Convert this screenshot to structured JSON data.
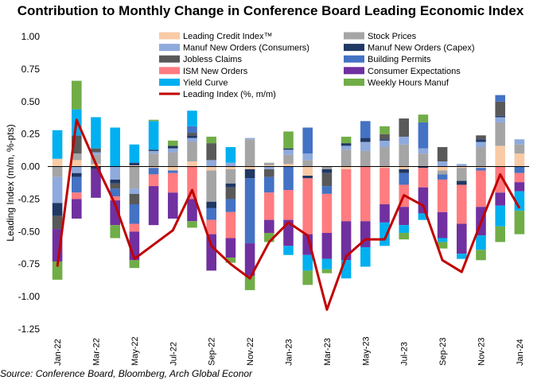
{
  "chart_data": {
    "type": "bar",
    "stacked": true,
    "title": "Contribution to Monthly Change in Conference Board Leading Economic Index",
    "ylabel": "Leading Index (m/m, %-pts)",
    "xlabel": "",
    "ylim": [
      -1.25,
      1.0
    ],
    "yticks": [
      "1.00",
      "0.75",
      "0.50",
      "0.25",
      "0.00",
      "-0.25",
      "-0.50",
      "-0.75",
      "-1.00",
      "-1.25"
    ],
    "ytick_values": [
      1.0,
      0.75,
      0.5,
      0.25,
      0.0,
      -0.25,
      -0.5,
      -0.75,
      -1.0,
      -1.25
    ],
    "legend_position": "top",
    "source": "Source: Conference Board, Bloomberg, Arch Global Econor",
    "categories": [
      "Jan-22",
      "Feb-22",
      "Mar-22",
      "Apr-22",
      "May-22",
      "Jun-22",
      "Jul-22",
      "Aug-22",
      "Sep-22",
      "Oct-22",
      "Nov-22",
      "Dec-22",
      "Jan-23",
      "Feb-23",
      "Mar-23",
      "Apr-23",
      "May-23",
      "Jun-23",
      "Jul-23",
      "Aug-23",
      "Sep-23",
      "Oct-23",
      "Nov-23",
      "Dec-23",
      "Jan-24"
    ],
    "tick_labels": [
      "Jan-22",
      "Mar-22",
      "May-22",
      "Jul-22",
      "Sep-22",
      "Nov-22",
      "Jan-23",
      "Mar-23",
      "May-23",
      "Jul-23",
      "Sep-23",
      "Nov-23",
      "Jan-24"
    ],
    "series": [
      {
        "name": "Leading Credit Index™",
        "color": "#f8cba6",
        "legend_col": 0,
        "values": [
          0.06,
          0.05,
          0.02,
          0.0,
          0.01,
          -0.01,
          -0.03,
          0.04,
          -0.03,
          -0.02,
          -0.02,
          0.01,
          0.02,
          -0.07,
          0.0,
          -0.02,
          0.0,
          -0.01,
          -0.02,
          0.0,
          -0.03,
          -0.01,
          -0.01,
          0.16,
          0.1
        ]
      },
      {
        "name": "Stock Prices",
        "color": "#a5a5a5",
        "legend_col": 1,
        "values": [
          -0.08,
          0.05,
          0.07,
          0.0,
          -0.17,
          0.1,
          0.11,
          0.15,
          -0.24,
          -0.11,
          0.21,
          0.02,
          0.07,
          0.05,
          -0.02,
          0.13,
          0.12,
          0.15,
          0.17,
          0.1,
          -0.03,
          -0.1,
          0.15,
          0.18,
          0.07
        ]
      },
      {
        "name": "Manuf New Orders (Consumers)",
        "color": "#8faadc",
        "legend_col": 0,
        "values": [
          -0.2,
          -0.05,
          0.02,
          -0.1,
          -0.04,
          0.02,
          0.03,
          0.03,
          0.05,
          0.03,
          0.01,
          -0.02,
          0.04,
          0.05,
          0.0,
          0.03,
          0.07,
          0.05,
          0.06,
          0.04,
          0.04,
          0.02,
          0.04,
          0.04,
          0.04
        ]
      },
      {
        "name": "Manuf New Orders (Capex)",
        "color": "#203864",
        "legend_col": 1,
        "values": [
          -0.1,
          -0.03,
          -0.02,
          -0.03,
          0.02,
          0.01,
          0.02,
          0.02,
          -0.05,
          -0.03,
          -0.07,
          0.0,
          0.01,
          -0.02,
          -0.03,
          0.02,
          0.03,
          0.01,
          -0.03,
          -0.01,
          0.0,
          -0.03,
          0.02,
          0.01,
          0.0
        ]
      },
      {
        "name": "Jobless Claims",
        "color": "#595959",
        "legend_col": 0,
        "values": [
          -0.1,
          0.14,
          0.03,
          -0.04,
          -0.08,
          0.0,
          0.0,
          0.02,
          0.13,
          -0.09,
          0.0,
          -0.06,
          0.0,
          0.0,
          -0.1,
          0.0,
          0.0,
          0.04,
          0.14,
          0.0,
          0.11,
          0.0,
          0.03,
          0.11,
          0.0
        ]
      },
      {
        "name": "Building Permits",
        "color": "#4472c4",
        "legend_col": 1,
        "values": [
          0.0,
          -0.12,
          0.0,
          -0.06,
          -0.15,
          -0.05,
          -0.02,
          0.05,
          -0.09,
          -0.1,
          -0.5,
          -0.12,
          -0.18,
          0.2,
          -0.06,
          0.0,
          0.13,
          0.0,
          -0.09,
          0.2,
          -0.04,
          0.0,
          -0.02,
          0.05,
          -0.05
        ]
      },
      {
        "name": "ISM New Orders",
        "color": "#ff7c80",
        "legend_col": 0,
        "values": [
          0.0,
          -0.05,
          0.0,
          -0.03,
          -0.06,
          -0.09,
          -0.15,
          -0.25,
          -0.11,
          -0.2,
          0.0,
          -0.21,
          -0.23,
          -0.43,
          -0.3,
          -0.4,
          -0.42,
          -0.28,
          -0.17,
          -0.15,
          -0.25,
          -0.3,
          -0.28,
          -0.2,
          -0.07
        ]
      },
      {
        "name": "Consumer Expectations",
        "color": "#7030a0",
        "legend_col": 1,
        "values": [
          -0.25,
          -0.15,
          -0.22,
          -0.19,
          -0.22,
          -0.3,
          -0.2,
          -0.17,
          -0.28,
          -0.15,
          -0.25,
          -0.1,
          -0.2,
          -0.16,
          -0.2,
          -0.3,
          -0.2,
          -0.14,
          -0.14,
          -0.2,
          -0.2,
          -0.23,
          -0.22,
          -0.1,
          -0.07
        ]
      },
      {
        "name": "Yield Curve",
        "color": "#00b0f0",
        "legend_col": 0,
        "values": [
          0.22,
          0.2,
          0.24,
          0.3,
          0.14,
          0.22,
          0.0,
          0.12,
          0.0,
          0.12,
          0.0,
          0.0,
          -0.07,
          -0.12,
          -0.08,
          -0.14,
          -0.15,
          -0.18,
          -0.06,
          -0.05,
          -0.03,
          -0.04,
          -0.11,
          -0.16,
          -0.15
        ]
      },
      {
        "name": "Weekly Hours Manuf",
        "color": "#70ad47",
        "legend_col": 1,
        "values": [
          -0.14,
          0.22,
          0.0,
          -0.1,
          -0.06,
          0.01,
          0.04,
          -0.05,
          0.05,
          -0.04,
          -0.11,
          -0.07,
          0.13,
          -0.11,
          -0.03,
          0.05,
          0.0,
          0.06,
          -0.05,
          0.06,
          -0.05,
          0.0,
          -0.08,
          -0.12,
          -0.18
        ]
      }
    ],
    "line": {
      "name": "Leading Index (%, m/m)",
      "color": "#c00000",
      "legend_col": 0,
      "values": [
        -0.77,
        0.36,
        0.02,
        -0.29,
        -0.71,
        -0.6,
        -0.49,
        -0.18,
        -0.61,
        -0.75,
        -0.86,
        -0.58,
        -0.43,
        -0.53,
        -1.1,
        -0.69,
        -0.56,
        -0.56,
        -0.22,
        -0.3,
        -0.72,
        -0.81,
        -0.43,
        -0.06,
        -0.32
      ]
    }
  }
}
